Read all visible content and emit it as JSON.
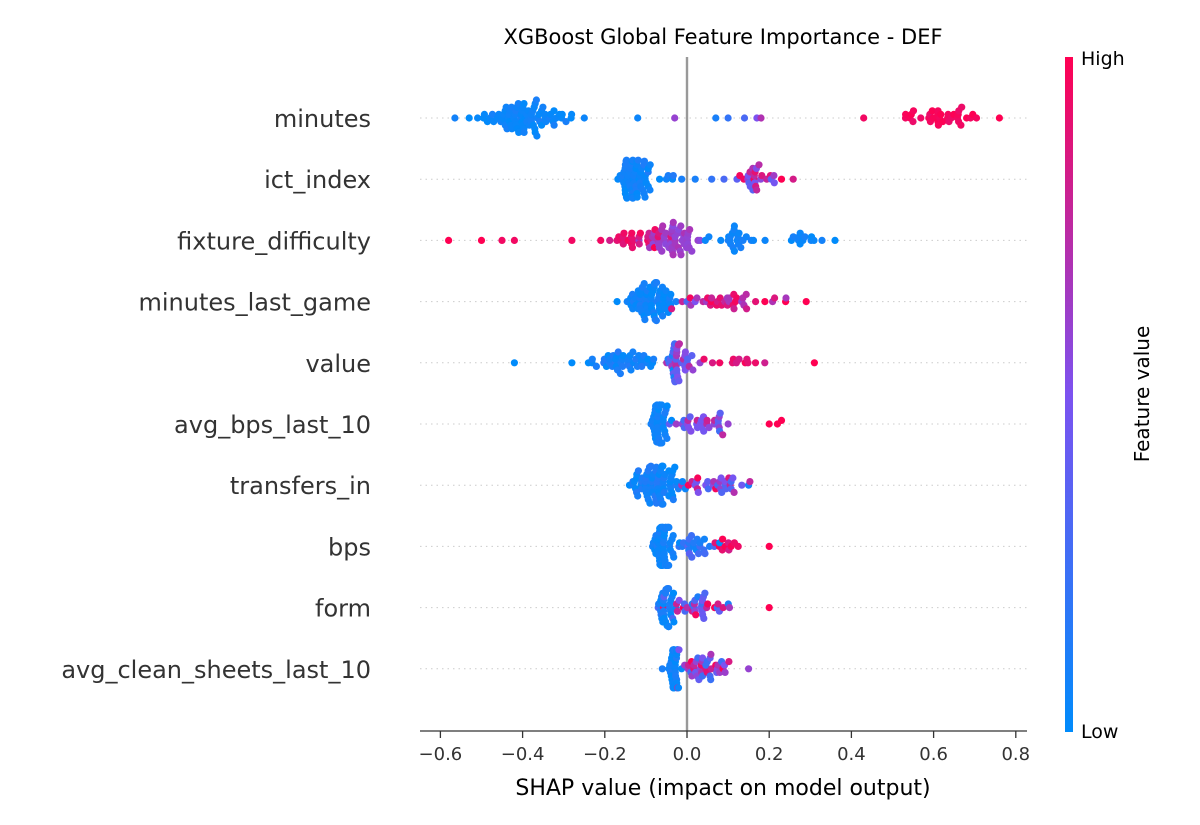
{
  "chart_data": {
    "type": "scatter",
    "subtype": "shap-beeswarm",
    "title": "XGBoost Global Feature Importance - DEF",
    "xlabel": "SHAP value (impact on model output)",
    "ylabel": "",
    "xlim": [
      -0.65,
      0.83
    ],
    "xticks": [
      -0.6,
      -0.4,
      -0.2,
      0.0,
      0.2,
      0.4,
      0.6,
      0.8
    ],
    "xtick_labels": [
      "−0.6",
      "−0.4",
      "−0.2",
      "0.0",
      "0.2",
      "0.4",
      "0.6",
      "0.8"
    ],
    "grid": false,
    "colorbar": {
      "title": "Feature value",
      "high_label": "High",
      "low_label": "Low",
      "low_color": "#008bfb",
      "mid_color": "#7c52f0",
      "high_color": "#ff0052"
    },
    "features": [
      {
        "name": "minutes",
        "clusters": [
          {
            "center": -0.42,
            "spread": 0.055,
            "count": 70,
            "cmin": 0.0,
            "cmax": 0.1
          },
          {
            "center": -0.3,
            "spread": 0.03,
            "count": 10,
            "cmin": 0.0,
            "cmax": 0.1
          },
          {
            "center": 0.62,
            "spread": 0.06,
            "count": 34,
            "cmin": 0.92,
            "cmax": 1.0
          }
        ],
        "points": [
          {
            "x": -0.53,
            "c": 0.0
          },
          {
            "x": -0.25,
            "c": 0.05
          },
          {
            "x": -0.12,
            "c": 0.05
          },
          {
            "x": -0.03,
            "c": 0.6
          },
          {
            "x": 0.07,
            "c": 0.1
          },
          {
            "x": 0.1,
            "c": 0.2
          },
          {
            "x": 0.14,
            "c": 0.3
          },
          {
            "x": 0.17,
            "c": 0.5
          },
          {
            "x": 0.18,
            "c": 0.7
          },
          {
            "x": 0.43,
            "c": 0.95
          },
          {
            "x": 0.76,
            "c": 1.0
          }
        ]
      },
      {
        "name": "ict_index",
        "clusters": [
          {
            "center": -0.13,
            "spread": 0.017,
            "count": 55,
            "cmin": 0.0,
            "cmax": 0.12
          },
          {
            "center": -0.05,
            "spread": 0.03,
            "count": 10,
            "cmin": 0.0,
            "cmax": 0.15
          },
          {
            "center": 0.16,
            "spread": 0.04,
            "count": 26,
            "cmin": 0.35,
            "cmax": 1.0
          }
        ],
        "points": [
          {
            "x": 0.02,
            "c": 0.1
          },
          {
            "x": 0.06,
            "c": 0.2
          },
          {
            "x": 0.09,
            "c": 0.3
          },
          {
            "x": 0.23,
            "c": 1.0
          }
        ]
      },
      {
        "name": "fixture_difficulty",
        "clusters": [
          {
            "center": -0.03,
            "spread": 0.03,
            "count": 48,
            "cmin": 0.55,
            "cmax": 0.7
          },
          {
            "center": -0.12,
            "spread": 0.04,
            "count": 26,
            "cmin": 0.8,
            "cmax": 1.0
          },
          {
            "center": 0.11,
            "spread": 0.025,
            "count": 22,
            "cmin": 0.0,
            "cmax": 0.12
          },
          {
            "center": 0.3,
            "spread": 0.035,
            "count": 12,
            "cmin": 0.0,
            "cmax": 0.1
          }
        ],
        "points": [
          {
            "x": -0.58,
            "c": 1.0
          },
          {
            "x": -0.5,
            "c": 1.0
          },
          {
            "x": -0.45,
            "c": 0.95
          },
          {
            "x": -0.42,
            "c": 0.95
          },
          {
            "x": -0.28,
            "c": 0.95
          },
          {
            "x": -0.21,
            "c": 0.95
          },
          {
            "x": 0.19,
            "c": 0.05
          },
          {
            "x": 0.36,
            "c": 0.0
          }
        ]
      },
      {
        "name": "minutes_last_game",
        "clusters": [
          {
            "center": -0.09,
            "spread": 0.03,
            "count": 65,
            "cmin": 0.0,
            "cmax": 0.12
          },
          {
            "center": 0.1,
            "spread": 0.06,
            "count": 35,
            "cmin": 0.6,
            "cmax": 1.0
          }
        ],
        "points": [
          {
            "x": -0.17,
            "c": 0.0
          },
          {
            "x": 0.0,
            "c": 0.3
          },
          {
            "x": 0.02,
            "c": 0.5
          },
          {
            "x": 0.24,
            "c": 1.0
          },
          {
            "x": 0.29,
            "c": 1.0
          }
        ]
      },
      {
        "name": "value",
        "clusters": [
          {
            "center": -0.14,
            "spread": 0.05,
            "count": 45,
            "cmin": 0.0,
            "cmax": 0.15
          },
          {
            "center": -0.03,
            "spread": 0.025,
            "count": 35,
            "cmin": 0.2,
            "cmax": 0.75
          },
          {
            "center": 0.12,
            "spread": 0.04,
            "count": 12,
            "cmin": 0.8,
            "cmax": 1.0
          }
        ],
        "points": [
          {
            "x": -0.42,
            "c": 0.0
          },
          {
            "x": -0.28,
            "c": 0.0
          },
          {
            "x": -0.24,
            "c": 0.0
          },
          {
            "x": 0.31,
            "c": 1.0
          }
        ]
      },
      {
        "name": "avg_bps_last_10",
        "clusters": [
          {
            "center": -0.07,
            "spread": 0.012,
            "count": 45,
            "cmin": 0.0,
            "cmax": 0.12
          },
          {
            "center": 0.03,
            "spread": 0.035,
            "count": 30,
            "cmin": 0.25,
            "cmax": 0.8
          }
        ],
        "points": [
          {
            "x": 0.2,
            "c": 1.0
          },
          {
            "x": 0.22,
            "c": 1.0
          },
          {
            "x": 0.23,
            "c": 1.0
          },
          {
            "x": 0.1,
            "c": 0.6
          }
        ]
      },
      {
        "name": "transfers_in",
        "clusters": [
          {
            "center": -0.07,
            "spread": 0.035,
            "count": 75,
            "cmin": 0.0,
            "cmax": 0.15
          },
          {
            "center": 0.06,
            "spread": 0.04,
            "count": 30,
            "cmin": 0.25,
            "cmax": 1.0
          }
        ],
        "points": [
          {
            "x": -0.14,
            "c": 0.0
          },
          {
            "x": 0.15,
            "c": 0.1
          }
        ]
      },
      {
        "name": "bps",
        "clusters": [
          {
            "center": -0.06,
            "spread": 0.012,
            "count": 50,
            "cmin": 0.0,
            "cmax": 0.12
          },
          {
            "center": 0.02,
            "spread": 0.03,
            "count": 25,
            "cmin": 0.0,
            "cmax": 0.4
          },
          {
            "center": 0.12,
            "spread": 0.025,
            "count": 10,
            "cmin": 0.8,
            "cmax": 1.0
          }
        ],
        "points": [
          {
            "x": 0.2,
            "c": 1.0
          }
        ]
      },
      {
        "name": "form",
        "clusters": [
          {
            "center": -0.05,
            "spread": 0.008,
            "count": 30,
            "cmin": 0.0,
            "cmax": 0.15
          },
          {
            "center": 0.03,
            "spread": 0.035,
            "count": 35,
            "cmin": 0.1,
            "cmax": 1.0
          }
        ],
        "points": [
          {
            "x": 0.2,
            "c": 1.0
          },
          {
            "x": -0.07,
            "c": 0.3
          }
        ]
      },
      {
        "name": "avg_clean_sheets_last_10",
        "clusters": [
          {
            "center": -0.03,
            "spread": 0.006,
            "count": 40,
            "cmin": 0.0,
            "cmax": 0.12
          },
          {
            "center": 0.04,
            "spread": 0.035,
            "count": 40,
            "cmin": 0.2,
            "cmax": 1.0
          }
        ],
        "points": [
          {
            "x": -0.06,
            "c": 0.1
          },
          {
            "x": 0.15,
            "c": 0.6
          }
        ]
      }
    ]
  }
}
